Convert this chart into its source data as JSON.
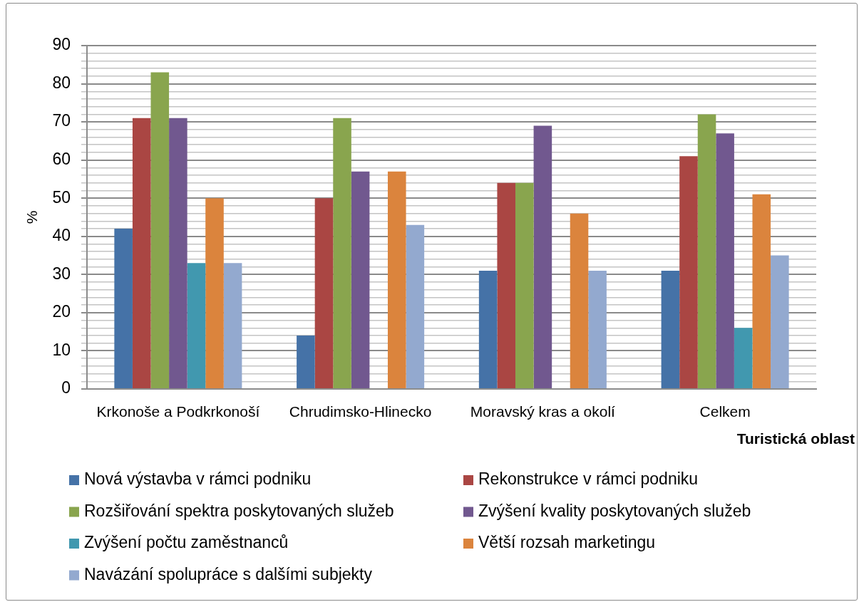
{
  "chart_data": {
    "type": "bar",
    "ylabel": "%",
    "xlabel": "Turistická oblast",
    "categories": [
      "Krkonoše a Podkrkonoší",
      "Chrudimsko-Hlinecko",
      "Moravský kras a okolí",
      "Celkem"
    ],
    "series": [
      {
        "name": "Nová výstavba v rámci podniku",
        "color": "#4572a7",
        "values": [
          42,
          14,
          31,
          31
        ]
      },
      {
        "name": "Rekonstrukce v rámci podniku",
        "color": "#aa4643",
        "values": [
          71,
          50,
          54,
          61
        ]
      },
      {
        "name": "Rozšiřování spektra poskytovaných služeb",
        "color": "#89a54e",
        "values": [
          83,
          71,
          54,
          72
        ]
      },
      {
        "name": "Zvýšení kvality poskytovaných služeb",
        "color": "#71588f",
        "values": [
          71,
          57,
          69,
          67
        ]
      },
      {
        "name": "Zvýšení počtu zaměstnanců",
        "color": "#4198af",
        "values": [
          33,
          0,
          0,
          16
        ]
      },
      {
        "name": "Větší rozsah marketingu",
        "color": "#db843d",
        "values": [
          50,
          57,
          46,
          51
        ]
      },
      {
        "name": "Navázání spolupráce s dalšími subjekty",
        "color": "#93a9cf",
        "values": [
          33,
          43,
          31,
          35
        ]
      }
    ],
    "ylim": [
      0,
      90
    ],
    "yticks": [
      0,
      {
        "value": 2,
        "label": null
      },
      {
        "value": 4,
        "label": null
      },
      {
        "value": 6,
        "label": null
      },
      {
        "value": 8,
        "label": null
      },
      10,
      {
        "value": 12,
        "label": null
      },
      {
        "value": 14,
        "label": null
      },
      {
        "value": 16,
        "label": null
      },
      {
        "value": 18,
        "label": null
      },
      20,
      {
        "value": 22,
        "label": null
      },
      {
        "value": 24,
        "label": null
      },
      {
        "value": 26,
        "label": null
      },
      {
        "value": 28,
        "label": null
      },
      30,
      {
        "value": 32,
        "label": null
      },
      {
        "value": 34,
        "label": null
      },
      {
        "value": 36,
        "label": null
      },
      {
        "value": 38,
        "label": null
      },
      40,
      {
        "value": 42,
        "label": null
      },
      {
        "value": 44,
        "label": null
      },
      {
        "value": 46,
        "label": null
      },
      {
        "value": 48,
        "label": null
      },
      50,
      {
        "value": 52,
        "label": null
      },
      {
        "value": 54,
        "label": null
      },
      {
        "value": 56,
        "label": null
      },
      {
        "value": 58,
        "label": null
      },
      60,
      {
        "value": 62,
        "label": null
      },
      {
        "value": 64,
        "label": null
      },
      {
        "value": 66,
        "label": null
      },
      {
        "value": 68,
        "label": null
      },
      70,
      {
        "value": 72,
        "label": null
      },
      {
        "value": 74,
        "label": null
      },
      {
        "value": 76,
        "label": null
      },
      {
        "value": 78,
        "label": null
      },
      80,
      {
        "value": 82,
        "label": null
      },
      {
        "value": 84,
        "label": null
      },
      {
        "value": 86,
        "label": null
      },
      {
        "value": 88,
        "label": null
      },
      90
    ],
    "grid": "y",
    "legend": "bottom"
  }
}
